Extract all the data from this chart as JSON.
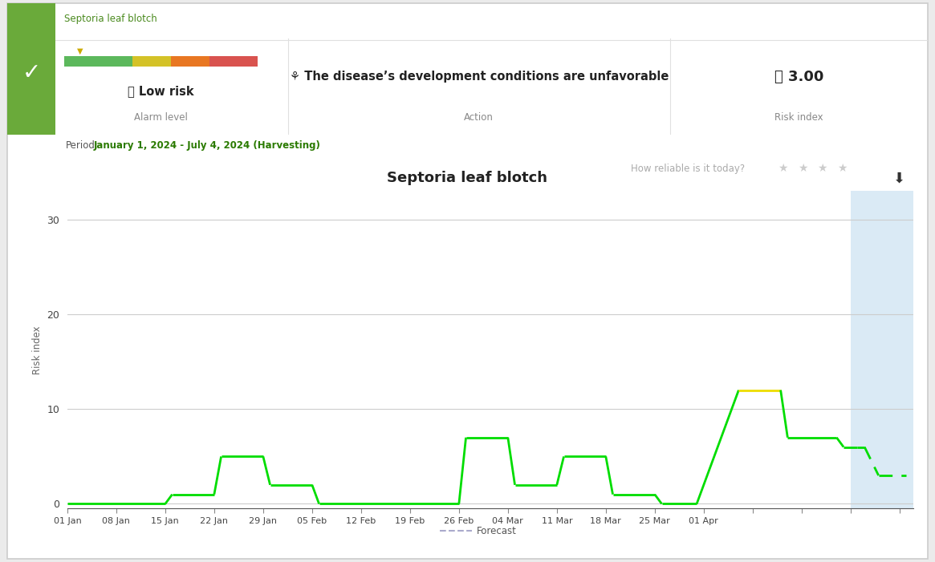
{
  "title": "Septoria leaf blotch",
  "ylabel": "Risk index",
  "xlabel_legend": "Forecast",
  "yticks": [
    0,
    10,
    20,
    30
  ],
  "xtick_labels": [
    "01 Jan",
    "08 Jan",
    "15 Jan",
    "22 Jan",
    "29 Jan",
    "05 Feb",
    "12 Feb",
    "19 Feb",
    "26 Feb",
    "04 Mar",
    "11 Mar",
    "18 Mar",
    "25 Mar",
    "01 Apr"
  ],
  "header_title": "Septoria leaf blotch",
  "alarm_level_text": "ⓘ Low risk",
  "alarm_label": "Alarm level",
  "action_text": "⚘ The disease’s development conditions are unfavorable",
  "action_label": "Action",
  "risk_index_value": "ⓘ 3.00",
  "risk_index_label": "Risk index",
  "period_label": "Period:",
  "period_value": "January 1, 2024 - July 4, 2024 (Harvesting)",
  "how_reliable": "How reliable is it today?",
  "stars_count": 4,
  "segments": [
    {
      "x": [
        0,
        14
      ],
      "y": [
        0,
        0
      ],
      "color": "#00dd00",
      "lw": 2.0
    },
    {
      "x": [
        14,
        15
      ],
      "y": [
        0,
        1
      ],
      "color": "#00dd00",
      "lw": 2.0
    },
    {
      "x": [
        15,
        21
      ],
      "y": [
        1,
        1
      ],
      "color": "#00dd00",
      "lw": 2.0
    },
    {
      "x": [
        21,
        22
      ],
      "y": [
        1,
        5
      ],
      "color": "#00dd00",
      "lw": 2.0
    },
    {
      "x": [
        22,
        28
      ],
      "y": [
        5,
        5
      ],
      "color": "#00dd00",
      "lw": 2.0
    },
    {
      "x": [
        28,
        29
      ],
      "y": [
        5,
        2
      ],
      "color": "#00dd00",
      "lw": 2.0
    },
    {
      "x": [
        29,
        35
      ],
      "y": [
        2,
        2
      ],
      "color": "#00dd00",
      "lw": 2.0
    },
    {
      "x": [
        35,
        36
      ],
      "y": [
        2,
        0
      ],
      "color": "#00dd00",
      "lw": 2.0
    },
    {
      "x": [
        36,
        56
      ],
      "y": [
        0,
        0
      ],
      "color": "#00dd00",
      "lw": 2.0
    },
    {
      "x": [
        56,
        57
      ],
      "y": [
        0,
        7
      ],
      "color": "#00dd00",
      "lw": 2.0
    },
    {
      "x": [
        57,
        63
      ],
      "y": [
        7,
        7
      ],
      "color": "#00dd00",
      "lw": 2.0
    },
    {
      "x": [
        63,
        64
      ],
      "y": [
        7,
        2
      ],
      "color": "#00dd00",
      "lw": 2.0
    },
    {
      "x": [
        64,
        70
      ],
      "y": [
        2,
        2
      ],
      "color": "#00dd00",
      "lw": 2.0
    },
    {
      "x": [
        70,
        71
      ],
      "y": [
        2,
        5
      ],
      "color": "#00dd00",
      "lw": 2.0
    },
    {
      "x": [
        71,
        77
      ],
      "y": [
        5,
        5
      ],
      "color": "#00dd00",
      "lw": 2.0
    },
    {
      "x": [
        77,
        78
      ],
      "y": [
        5,
        1
      ],
      "color": "#00dd00",
      "lw": 2.0
    },
    {
      "x": [
        78,
        84
      ],
      "y": [
        1,
        1
      ],
      "color": "#00dd00",
      "lw": 2.0
    },
    {
      "x": [
        84,
        85
      ],
      "y": [
        1,
        0
      ],
      "color": "#00dd00",
      "lw": 2.0
    },
    {
      "x": [
        85,
        90
      ],
      "y": [
        0,
        0
      ],
      "color": "#00dd00",
      "lw": 2.0
    },
    {
      "x": [
        90,
        96
      ],
      "y": [
        0,
        12
      ],
      "color": "#00dd00",
      "lw": 2.0
    },
    {
      "x": [
        96,
        102
      ],
      "y": [
        12,
        12
      ],
      "color": "#eedd00",
      "lw": 2.0
    },
    {
      "x": [
        102,
        103
      ],
      "y": [
        12,
        7
      ],
      "color": "#00dd00",
      "lw": 2.0
    },
    {
      "x": [
        103,
        110
      ],
      "y": [
        7,
        7
      ],
      "color": "#00dd00",
      "lw": 2.0
    },
    {
      "x": [
        110,
        111
      ],
      "y": [
        7,
        6
      ],
      "color": "#00dd00",
      "lw": 2.0
    },
    {
      "x": [
        111,
        113
      ],
      "y": [
        6,
        6
      ],
      "color": "#00dd00",
      "lw": 2.0
    }
  ],
  "forecast_segments": [
    {
      "x": [
        113,
        114
      ],
      "y": [
        6,
        6
      ],
      "color": "#00dd00",
      "lw": 2.0
    },
    {
      "x": [
        114,
        116
      ],
      "y": [
        6,
        3
      ],
      "color": "#00dd00",
      "lw": 2.0
    },
    {
      "x": [
        116,
        120
      ],
      "y": [
        3,
        3
      ],
      "color": "#00dd00",
      "lw": 2.0
    }
  ],
  "forecast_start_x": 112,
  "xmax": 121,
  "xmin": 0,
  "green_sidebar_color": "#6aaa3a",
  "bar_green": "#5cb85c",
  "bar_yellow": "#d4c227",
  "bar_orange": "#e87722",
  "bar_red": "#d9534f",
  "tick_color": "#ccaa00"
}
